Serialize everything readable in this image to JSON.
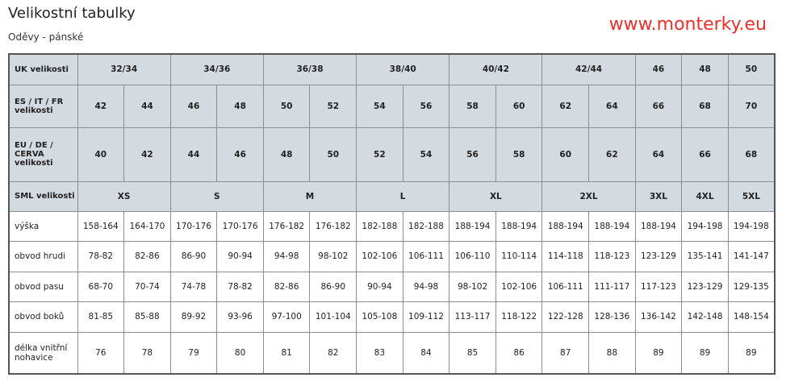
{
  "title": "Velikostní tabulky",
  "subtitle": "Oděvy - pánské",
  "watermark": "www.monterky.eu",
  "header_bg": "#d3dae0",
  "watermark_color": "#e8302a",
  "rows": [
    {
      "label": "UK velikosti",
      "header": true,
      "cells": [
        [
          "32/34",
          2
        ],
        [
          "34/36",
          2
        ],
        [
          "36/38",
          2
        ],
        [
          "38/40",
          2
        ],
        [
          "40/42",
          2
        ],
        [
          "42/44",
          2
        ],
        [
          "46",
          1
        ],
        [
          "48",
          1
        ],
        [
          "50",
          1
        ]
      ]
    },
    {
      "label": "ES / IT / FR velikosti",
      "header": true,
      "cells": [
        "42",
        "44",
        "46",
        "48",
        "50",
        "52",
        "54",
        "56",
        "58",
        "60",
        "62",
        "64",
        "66",
        "68",
        "70"
      ]
    },
    {
      "label": "EU / DE / CERVA velikosti",
      "header": true,
      "cells": [
        "40",
        "42",
        "44",
        "46",
        "48",
        "50",
        "52",
        "54",
        "56",
        "58",
        "60",
        "62",
        "64",
        "66",
        "68"
      ]
    },
    {
      "label": "SML velikosti",
      "header": true,
      "cells": [
        [
          "XS",
          2
        ],
        [
          "S",
          2
        ],
        [
          "M",
          2
        ],
        [
          "L",
          2
        ],
        [
          "XL",
          2
        ],
        [
          "2XL",
          2
        ],
        [
          "3XL",
          1
        ],
        [
          "4XL",
          1
        ],
        [
          "5XL",
          1
        ]
      ]
    },
    {
      "label": "výška",
      "cells": [
        "158-164",
        "164-170",
        "170-176",
        "170-176",
        "176-182",
        "176-182",
        "182-188",
        "182-188",
        "188-194",
        "188-194",
        "188-194",
        "188-194",
        "188-194",
        "194-198",
        "194-198"
      ]
    },
    {
      "label": "obvod hrudi",
      "cells": [
        "78-82",
        "82-86",
        "86-90",
        "90-94",
        "94-98",
        "98-102",
        "102-106",
        "106-111",
        "106-110",
        "110-114",
        "114-118",
        "118-123",
        "123-129",
        "135-141",
        "141-147"
      ]
    },
    {
      "label": "obvod pasu",
      "cells": [
        "68-70",
        "70-74",
        "74-78",
        "78-82",
        "82-86",
        "86-90",
        "90-94",
        "94-98",
        "98-102",
        "102-106",
        "106-111",
        "111-117",
        "117-123",
        "123-129",
        "129-135"
      ]
    },
    {
      "label": "obvod boků",
      "cells": [
        "81-85",
        "85-88",
        "89-92",
        "93-96",
        "97-100",
        "101-104",
        "105-108",
        "109-112",
        "113-117",
        "118-122",
        "122-128",
        "128-136",
        "136-142",
        "142-148",
        "148-154"
      ]
    },
    {
      "label": "délka vnitřní nohavice",
      "cells": [
        "76",
        "78",
        "79",
        "80",
        "81",
        "82",
        "83",
        "84",
        "85",
        "86",
        "87",
        "88",
        "89",
        "89",
        "89"
      ]
    }
  ]
}
